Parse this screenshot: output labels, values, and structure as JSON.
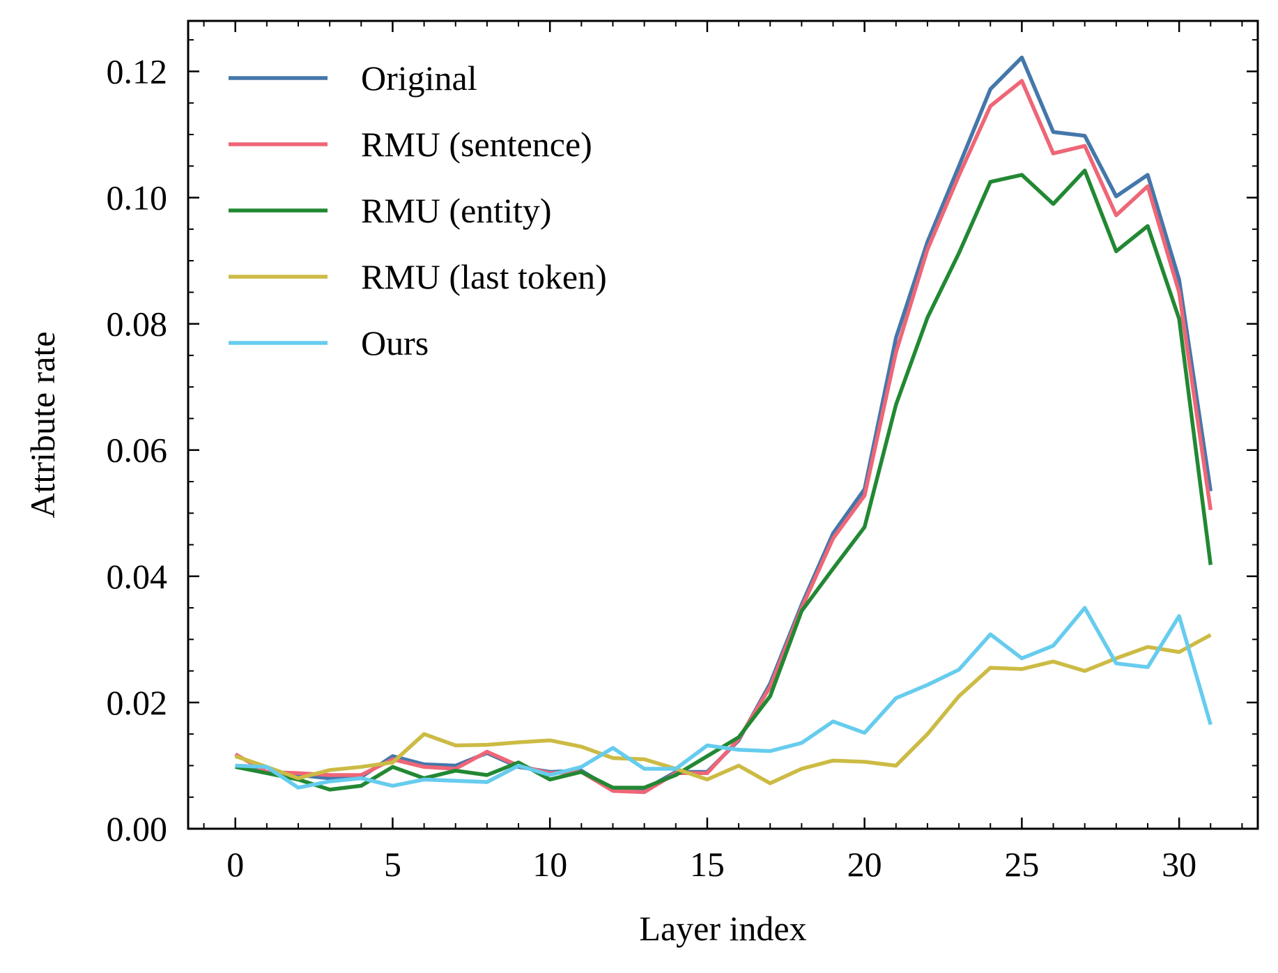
{
  "chart_data": {
    "type": "line",
    "title": "",
    "xlabel": "Layer index",
    "ylabel": "Attribute rate",
    "xlim": [
      -1.5,
      32.5
    ],
    "ylim": [
      0.0,
      0.128
    ],
    "x_ticks": [
      0,
      5,
      10,
      15,
      20,
      25,
      30
    ],
    "x_tick_labels": [
      "0",
      "5",
      "10",
      "15",
      "20",
      "25",
      "30"
    ],
    "y_ticks": [
      0.0,
      0.02,
      0.04,
      0.06,
      0.08,
      0.1,
      0.12
    ],
    "y_tick_labels": [
      "0.00",
      "0.02",
      "0.04",
      "0.06",
      "0.08",
      "0.10",
      "0.12"
    ],
    "grid": false,
    "legend_position": "top-left",
    "x": [
      0,
      1,
      2,
      3,
      4,
      5,
      6,
      7,
      8,
      9,
      10,
      11,
      12,
      13,
      14,
      15,
      16,
      17,
      18,
      19,
      20,
      21,
      22,
      23,
      24,
      25,
      26,
      27,
      28,
      29,
      30,
      31
    ],
    "series": [
      {
        "name": "Original",
        "color": "#4477aa",
        "values": [
          0.01,
          0.009,
          0.0085,
          0.008,
          0.0082,
          0.0115,
          0.0102,
          0.01,
          0.012,
          0.0098,
          0.009,
          0.0092,
          0.0062,
          0.0062,
          0.009,
          0.009,
          0.014,
          0.023,
          0.0355,
          0.0468,
          0.0538,
          0.0778,
          0.093,
          0.105,
          0.1172,
          0.1222,
          0.1104,
          0.1098,
          0.1002,
          0.1036,
          0.087,
          0.0535
        ]
      },
      {
        "name": "RMU (sentence)",
        "color": "#ee6677",
        "values": [
          0.0118,
          0.009,
          0.0088,
          0.0085,
          0.0085,
          0.011,
          0.0098,
          0.0095,
          0.0122,
          0.01,
          0.0088,
          0.009,
          0.006,
          0.0058,
          0.0088,
          0.0088,
          0.0142,
          0.0225,
          0.035,
          0.046,
          0.0528,
          0.0755,
          0.0918,
          0.1035,
          0.1145,
          0.1185,
          0.107,
          0.1082,
          0.0972,
          0.1018,
          0.085,
          0.0505
        ]
      },
      {
        "name": "RMU (entity)",
        "color": "#228833",
        "values": [
          0.0098,
          0.0088,
          0.0078,
          0.0062,
          0.0068,
          0.0098,
          0.008,
          0.0092,
          0.0085,
          0.0105,
          0.0078,
          0.009,
          0.0065,
          0.0065,
          0.0085,
          0.0115,
          0.0145,
          0.021,
          0.0345,
          0.0412,
          0.0478,
          0.0672,
          0.081,
          0.0912,
          0.1025,
          0.1036,
          0.099,
          0.1043,
          0.0915,
          0.0955,
          0.0808,
          0.0418
        ]
      },
      {
        "name": "RMU (last token)",
        "color": "#ccbb44",
        "values": [
          0.0115,
          0.0098,
          0.008,
          0.0093,
          0.0098,
          0.0105,
          0.015,
          0.0132,
          0.0133,
          0.0137,
          0.014,
          0.013,
          0.0112,
          0.011,
          0.0095,
          0.0078,
          0.01,
          0.0072,
          0.0095,
          0.0108,
          0.0106,
          0.01,
          0.015,
          0.021,
          0.0255,
          0.0253,
          0.0265,
          0.025,
          0.027,
          0.0288,
          0.028,
          0.0307
        ]
      },
      {
        "name": "Ours",
        "color": "#66ccee",
        "values": [
          0.01,
          0.0098,
          0.0065,
          0.0075,
          0.008,
          0.0068,
          0.0078,
          0.0076,
          0.0074,
          0.01,
          0.0085,
          0.0098,
          0.0128,
          0.0095,
          0.0095,
          0.0132,
          0.0125,
          0.0123,
          0.0136,
          0.017,
          0.0152,
          0.0207,
          0.0228,
          0.0252,
          0.0308,
          0.027,
          0.029,
          0.035,
          0.0262,
          0.0256,
          0.0337,
          0.0165
        ]
      }
    ]
  }
}
